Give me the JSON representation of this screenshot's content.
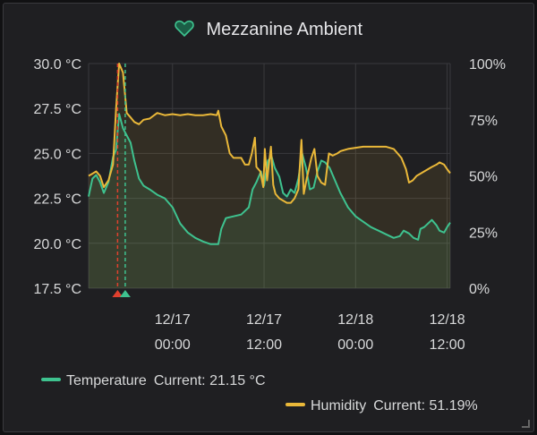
{
  "panel": {
    "title": "Mezzanine Ambient",
    "icon": "heart-icon"
  },
  "colors": {
    "temperature": "#3ec28f",
    "humidity": "#eab839",
    "marker_red": "#e0402e",
    "marker_green": "#3ec28f",
    "grid": "#3a3a3e",
    "text": "#d8d9da"
  },
  "legend": [
    {
      "name": "Temperature",
      "current_label": "Current: 21.15 °C",
      "color": "#3ec28f"
    },
    {
      "name": "Humidity",
      "current_label": "Current: 51.19%",
      "color": "#eab839"
    }
  ],
  "chart_data": {
    "type": "line",
    "x_axis": {
      "ticks": [
        {
          "t": 17,
          "label": [
            "12/17",
            "00:00"
          ]
        },
        {
          "t": 29,
          "label": [
            "12/17",
            "12:00"
          ]
        },
        {
          "t": 41,
          "label": [
            "12/18",
            "00:00"
          ]
        },
        {
          "t": 53,
          "label": [
            "12/18",
            "12:00"
          ]
        }
      ],
      "range": [
        6.0,
        53.4
      ]
    },
    "y_left": {
      "ticks": [
        "17.5 °C",
        "20.0 °C",
        "22.5 °C",
        "25.0 °C",
        "27.5 °C",
        "30.0 °C"
      ],
      "range": [
        17.5,
        30.0
      ]
    },
    "y_right": {
      "ticks": [
        "0%",
        "25%",
        "50%",
        "75%",
        "100%"
      ],
      "range": [
        0,
        100
      ]
    },
    "grid": true,
    "legend_position": "bottom",
    "series": [
      {
        "name": "Temperature",
        "axis": "left",
        "unit": "°C",
        "points": [
          [
            6.0,
            22.6
          ],
          [
            6.5,
            23.6
          ],
          [
            7.0,
            23.8
          ],
          [
            7.5,
            23.4
          ],
          [
            8.0,
            22.8
          ],
          [
            8.6,
            23.4
          ],
          [
            9.2,
            24.8
          ],
          [
            9.6,
            25.2
          ],
          [
            10.0,
            27.2
          ],
          [
            10.5,
            26.4
          ],
          [
            11.0,
            26.0
          ],
          [
            11.5,
            25.6
          ],
          [
            12.0,
            24.6
          ],
          [
            12.6,
            23.6
          ],
          [
            13.2,
            23.2
          ],
          [
            14.0,
            23.0
          ],
          [
            15.0,
            22.7
          ],
          [
            16.0,
            22.5
          ],
          [
            17.0,
            22.0
          ],
          [
            18.0,
            21.1
          ],
          [
            19.0,
            20.6
          ],
          [
            20.0,
            20.3
          ],
          [
            21.0,
            20.1
          ],
          [
            22.0,
            19.95
          ],
          [
            23.0,
            19.95
          ],
          [
            23.4,
            20.8
          ],
          [
            24.0,
            21.4
          ],
          [
            25.0,
            21.5
          ],
          [
            26.0,
            21.6
          ],
          [
            27.0,
            22.0
          ],
          [
            27.5,
            23.0
          ],
          [
            28.0,
            23.4
          ],
          [
            28.6,
            24.0
          ],
          [
            29.0,
            23.2
          ],
          [
            29.5,
            24.6
          ],
          [
            30.0,
            24.8
          ],
          [
            30.4,
            24.2
          ],
          [
            31.0,
            23.7
          ],
          [
            31.5,
            22.8
          ],
          [
            32.0,
            22.6
          ],
          [
            32.5,
            23.0
          ],
          [
            33.0,
            22.8
          ],
          [
            33.5,
            23.6
          ],
          [
            34.0,
            25.0
          ],
          [
            34.5,
            24.2
          ],
          [
            35.0,
            23.0
          ],
          [
            35.5,
            23.1
          ],
          [
            36.0,
            24.0
          ],
          [
            36.5,
            24.6
          ],
          [
            37.0,
            24.5
          ],
          [
            37.6,
            24.2
          ],
          [
            38.0,
            23.8
          ],
          [
            39.0,
            22.8
          ],
          [
            40.0,
            22.0
          ],
          [
            41.0,
            21.5
          ],
          [
            42.0,
            21.2
          ],
          [
            43.0,
            20.9
          ],
          [
            44.0,
            20.7
          ],
          [
            45.0,
            20.5
          ],
          [
            46.0,
            20.3
          ],
          [
            46.8,
            20.4
          ],
          [
            47.3,
            20.7
          ],
          [
            48.0,
            20.55
          ],
          [
            48.6,
            20.3
          ],
          [
            49.2,
            20.2
          ],
          [
            49.5,
            20.8
          ],
          [
            50.0,
            20.9
          ],
          [
            51.0,
            21.3
          ],
          [
            51.6,
            21.0
          ],
          [
            52.0,
            20.7
          ],
          [
            52.6,
            20.6
          ],
          [
            53.0,
            20.9
          ],
          [
            53.4,
            21.15
          ]
        ]
      },
      {
        "name": "Humidity",
        "axis": "right",
        "unit": "%",
        "points": [
          [
            6.0,
            50
          ],
          [
            6.5,
            51
          ],
          [
            7.0,
            52
          ],
          [
            7.5,
            50
          ],
          [
            8.0,
            45
          ],
          [
            8.6,
            48
          ],
          [
            9.2,
            55
          ],
          [
            9.6,
            80
          ],
          [
            10.0,
            100
          ],
          [
            10.5,
            96
          ],
          [
            11.0,
            78
          ],
          [
            11.5,
            76
          ],
          [
            12.0,
            74
          ],
          [
            12.6,
            73
          ],
          [
            13.2,
            75
          ],
          [
            14.0,
            75.5
          ],
          [
            15.0,
            78
          ],
          [
            16.0,
            77
          ],
          [
            17.0,
            77.5
          ],
          [
            18.0,
            77
          ],
          [
            19.0,
            77.5
          ],
          [
            20.0,
            77
          ],
          [
            21.0,
            77
          ],
          [
            22.0,
            77.5
          ],
          [
            22.8,
            77
          ],
          [
            23.0,
            79
          ],
          [
            23.4,
            72
          ],
          [
            24.0,
            68
          ],
          [
            24.5,
            60
          ],
          [
            25.0,
            58
          ],
          [
            26.0,
            58
          ],
          [
            26.5,
            55
          ],
          [
            27.0,
            55
          ],
          [
            27.4,
            60
          ],
          [
            27.8,
            67
          ],
          [
            28.0,
            54
          ],
          [
            28.5,
            52
          ],
          [
            28.9,
            45
          ],
          [
            29.1,
            62
          ],
          [
            29.4,
            48
          ],
          [
            29.9,
            63
          ],
          [
            30.2,
            46
          ],
          [
            30.5,
            42
          ],
          [
            31.0,
            40
          ],
          [
            31.5,
            39
          ],
          [
            32.0,
            38
          ],
          [
            32.5,
            38
          ],
          [
            33.0,
            40
          ],
          [
            33.5,
            44
          ],
          [
            33.9,
            66
          ],
          [
            34.2,
            42
          ],
          [
            34.6,
            49
          ],
          [
            35.2,
            58
          ],
          [
            35.6,
            62
          ],
          [
            36.0,
            50
          ],
          [
            36.5,
            47
          ],
          [
            37.0,
            46
          ],
          [
            37.5,
            60
          ],
          [
            38.0,
            59
          ],
          [
            38.6,
            60
          ],
          [
            39.0,
            61
          ],
          [
            40.0,
            62
          ],
          [
            41.0,
            62.5
          ],
          [
            42.0,
            63
          ],
          [
            43.0,
            63
          ],
          [
            44.0,
            63
          ],
          [
            45.0,
            63
          ],
          [
            46.0,
            62
          ],
          [
            47.0,
            58
          ],
          [
            47.6,
            53
          ],
          [
            48.0,
            47
          ],
          [
            48.5,
            48
          ],
          [
            49.0,
            50
          ],
          [
            50.0,
            52
          ],
          [
            51.0,
            54
          ],
          [
            51.6,
            55
          ],
          [
            52.0,
            56
          ],
          [
            52.6,
            55
          ],
          [
            53.0,
            53
          ],
          [
            53.4,
            51.19
          ]
        ]
      }
    ],
    "annotations": [
      {
        "t": 9.8,
        "color": "red"
      },
      {
        "t": 10.8,
        "color": "green"
      }
    ]
  }
}
